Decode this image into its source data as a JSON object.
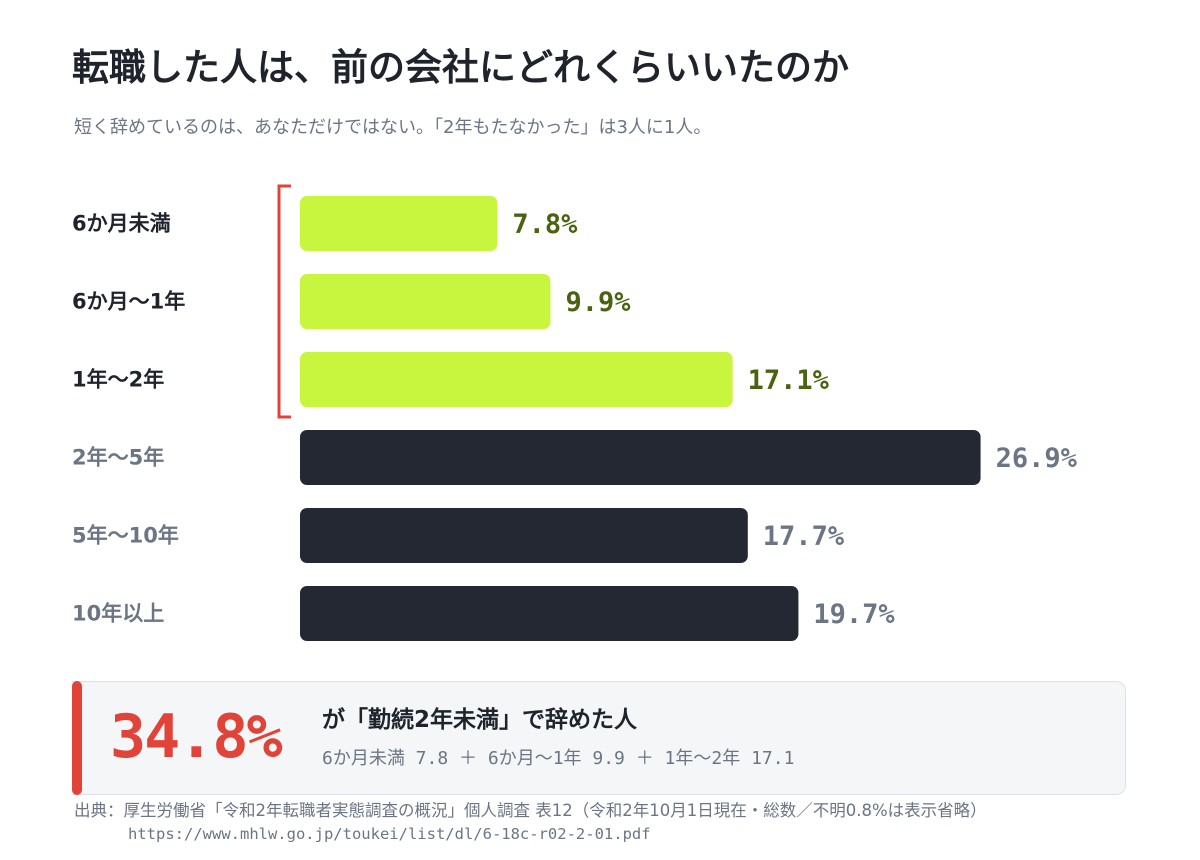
{
  "header": {
    "title": "転職した人は、前の会社にどれくらいいたのか",
    "subtitle": "短く辞めているのは、あなただけではない。「2年もたなかった」は3人に1人。"
  },
  "colors": {
    "highlight_bar": "#c8f53e",
    "highlight_label": "#1f242c",
    "highlight_value": "#4a6311",
    "normal_bar": "#232832",
    "normal_label": "#6b7584",
    "normal_value": "#6b7584",
    "bracket": "#e04438",
    "callout_accent": "#e04438"
  },
  "chart_data": {
    "type": "bar",
    "orientation": "horizontal",
    "title": "転職した人は、前の会社にどれくらいいたのか",
    "categories": [
      "6か月未満",
      "6か月〜1年",
      "1年〜2年",
      "2年〜5年",
      "5年〜10年",
      "10年以上"
    ],
    "values": [
      7.8,
      9.9,
      17.1,
      26.9,
      17.7,
      19.7
    ],
    "value_labels": [
      "7.8%",
      "9.9%",
      "17.1%",
      "26.9%",
      "17.7%",
      "19.7%"
    ],
    "highlighted": [
      true,
      true,
      true,
      false,
      false,
      false
    ],
    "unit": "%",
    "xlim": [
      0,
      30
    ],
    "grid": false,
    "legend": "none"
  },
  "callout": {
    "value": "34.8%",
    "headline": "が「勤続2年未満」で辞めた人",
    "breakdown": "6か月未満 7.8 ＋ 6か月〜1年 9.9 ＋ 1年〜2年 17.1"
  },
  "source": {
    "text": "出典：厚生労働省「令和2年転職者実態調査の概況」個人調査 表12（令和2年10月1日現在・総数／不明0.8%は表示省略）",
    "url": "https://www.mhlw.go.jp/toukei/list/dl/6-18c-r02-2-01.pdf"
  }
}
